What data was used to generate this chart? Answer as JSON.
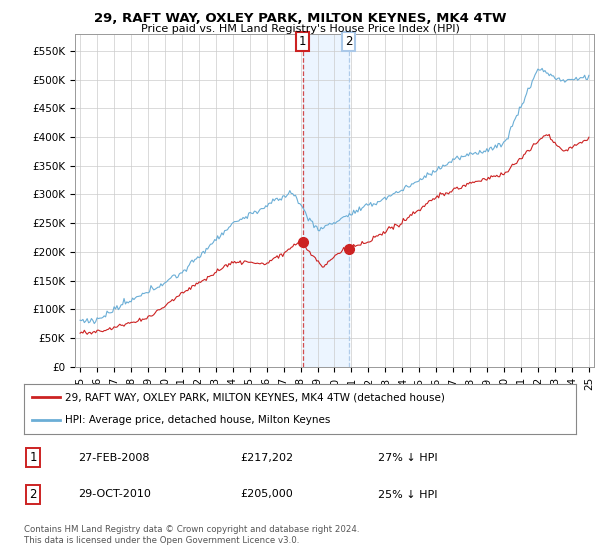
{
  "title": "29, RAFT WAY, OXLEY PARK, MILTON KEYNES, MK4 4TW",
  "subtitle": "Price paid vs. HM Land Registry's House Price Index (HPI)",
  "hpi_color": "#6baed6",
  "price_color": "#cc2222",
  "grid_color": "#cccccc",
  "ylim": [
    0,
    580000
  ],
  "yticks": [
    0,
    50000,
    100000,
    150000,
    200000,
    250000,
    300000,
    350000,
    400000,
    450000,
    500000,
    550000
  ],
  "ytick_labels": [
    "£0",
    "£50K",
    "£100K",
    "£150K",
    "£200K",
    "£250K",
    "£300K",
    "£350K",
    "£400K",
    "£450K",
    "£500K",
    "£550K"
  ],
  "sale1_date_num": 2008.12,
  "sale1_price": 217202,
  "sale2_date_num": 2010.83,
  "sale2_price": 205000,
  "legend_line1": "29, RAFT WAY, OXLEY PARK, MILTON KEYNES, MK4 4TW (detached house)",
  "legend_line2": "HPI: Average price, detached house, Milton Keynes",
  "table_row1_num": "1",
  "table_row1_date": "27-FEB-2008",
  "table_row1_price": "£217,202",
  "table_row1_hpi": "27% ↓ HPI",
  "table_row2_num": "2",
  "table_row2_date": "29-OCT-2010",
  "table_row2_price": "£205,000",
  "table_row2_hpi": "25% ↓ HPI",
  "footer": "Contains HM Land Registry data © Crown copyright and database right 2024.\nThis data is licensed under the Open Government Licence v3.0."
}
